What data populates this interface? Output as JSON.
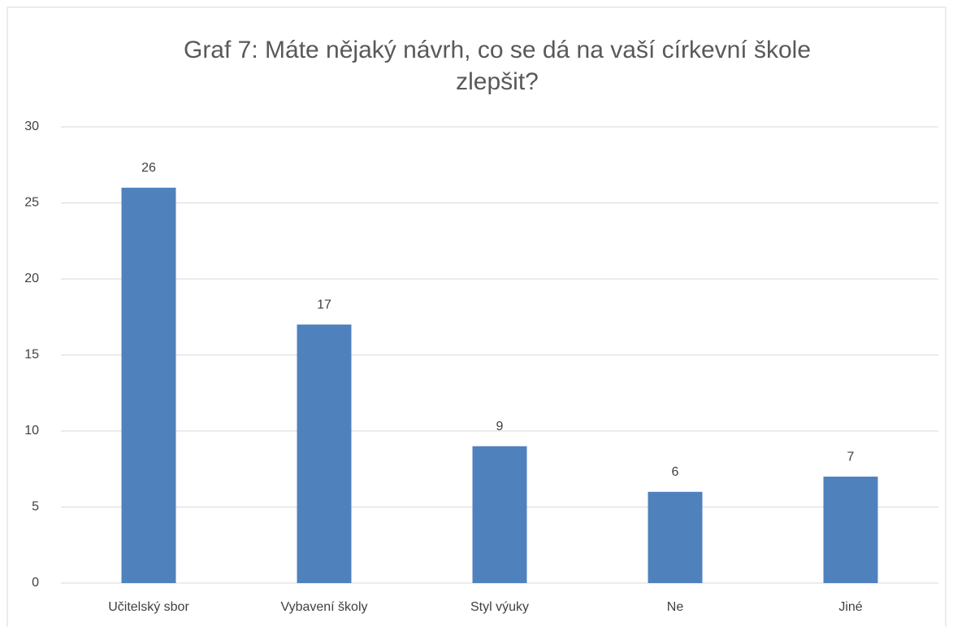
{
  "chart_data": {
    "type": "bar",
    "title": "Graf 7: Máte nějaký návrh, co se dá na vaší církevní škole zlepšit?",
    "categories": [
      "Učitelský sbor",
      "Vybavení školy",
      "Styl výuky",
      "Ne",
      "Jiné"
    ],
    "values": [
      26,
      17,
      9,
      6,
      7
    ],
    "color": "#4f81bd",
    "ylim": [
      0,
      30
    ],
    "yticks": [
      0,
      5,
      10,
      15,
      20,
      25,
      30
    ],
    "grid": true
  }
}
